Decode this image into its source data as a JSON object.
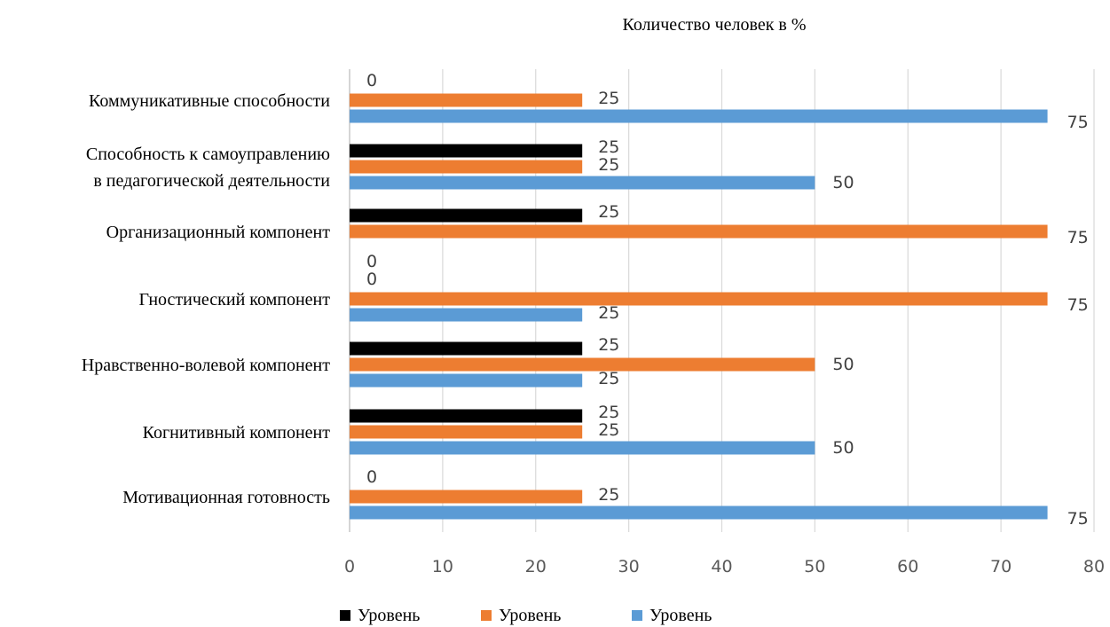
{
  "chart_data": {
    "type": "bar",
    "orientation": "horizontal",
    "title": "Количество человек в %",
    "categories": [
      [
        "Коммуникативные способности"
      ],
      [
        "Способность к самоуправлению",
        "в педагогической деятельности"
      ],
      [
        "Организационный компонент"
      ],
      [
        "Гностический компонент"
      ],
      [
        "Нравственно-волевой компонент"
      ],
      [
        "Когнитивный компонент"
      ],
      [
        "Мотивационная готовность"
      ]
    ],
    "series": [
      {
        "name": "Уровень",
        "color": "#000000",
        "values": [
          0,
          25,
          25,
          0,
          25,
          25,
          0
        ]
      },
      {
        "name": "Уровень",
        "color": "#ED7D31",
        "values": [
          25,
          25,
          75,
          75,
          50,
          25,
          25
        ]
      },
      {
        "name": "Уровень",
        "color": "#5B9BD5",
        "values": [
          75,
          50,
          0,
          25,
          25,
          50,
          75
        ]
      }
    ],
    "xlim": [
      0,
      80
    ],
    "xticks": [
      0,
      10,
      20,
      30,
      40,
      50,
      60,
      70,
      80
    ],
    "grid": true,
    "legend_position": "bottom"
  }
}
